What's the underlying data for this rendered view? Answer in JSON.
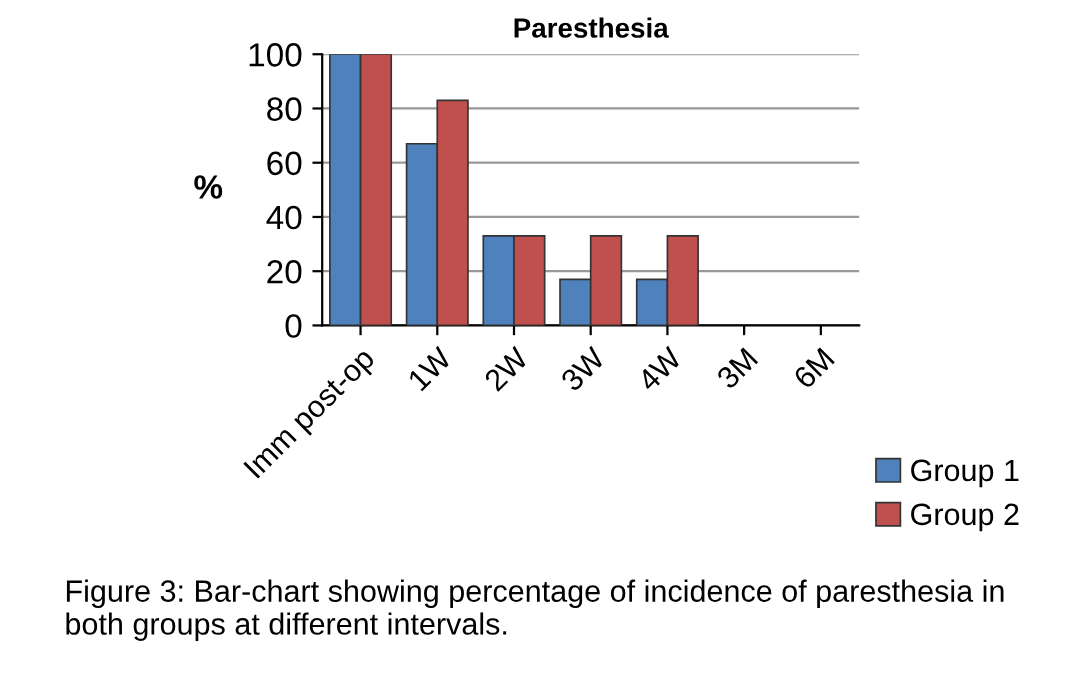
{
  "chart_data": {
    "type": "bar",
    "title": "Paresthesia",
    "ylabel": "%",
    "categories": [
      "Imm post-op",
      "1W",
      "2W",
      "3W",
      "4W",
      "3M",
      "6M"
    ],
    "series": [
      {
        "name": "Group 1",
        "color": "#4f81bd",
        "values": [
          100,
          67,
          33,
          17,
          17,
          0,
          0
        ]
      },
      {
        "name": "Group 2",
        "color": "#c0504d",
        "values": [
          100,
          83,
          33,
          33,
          33,
          0,
          0
        ]
      }
    ],
    "ylim": [
      0,
      100
    ],
    "yticks": [
      0,
      20,
      40,
      60,
      80,
      100
    ],
    "grid": "y",
    "legend": "bottom right",
    "annotations": [
      "Figure 3: Bar-chart showing percentage of incidence of paresthesia in both groups at different intervals."
    ]
  }
}
